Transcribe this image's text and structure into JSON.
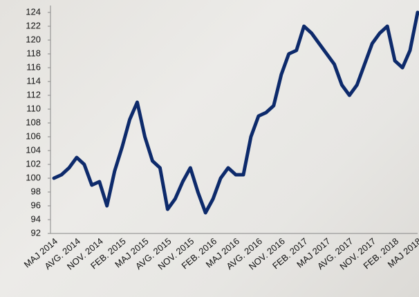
{
  "chart_data": {
    "type": "line",
    "categories": [
      "MAJ 2014",
      null,
      null,
      "AVG. 2014",
      null,
      null,
      "NOV. 2014",
      null,
      null,
      "FEB. 2015",
      null,
      null,
      "MAJ 2015",
      null,
      null,
      "AVG. 2015",
      null,
      null,
      "NOV. 2015",
      null,
      null,
      "FEB. 2016",
      null,
      null,
      "MAJ 2016",
      null,
      null,
      "AVG. 2016",
      null,
      null,
      "NOV. 2016",
      null,
      null,
      "FEB. 2017",
      null,
      null,
      "MAJ 2017",
      null,
      null,
      "AVG. 2017",
      null,
      null,
      "NOV. 2017",
      null,
      null,
      "FEB. 2018",
      null,
      null,
      "MAJ 2018"
    ],
    "series": [
      {
        "color": "#0d2a6b",
        "values": [
          100,
          100.5,
          101.5,
          103,
          102,
          99,
          99.5,
          96,
          101,
          104.5,
          108.5,
          111,
          106,
          102.5,
          101.5,
          95.5,
          97,
          99.5,
          101.5,
          98,
          95,
          97,
          100,
          101.5,
          100.5,
          100.5,
          106,
          109,
          109.5,
          110.5,
          115,
          118,
          118.5,
          122,
          121,
          119.5,
          118,
          116.5,
          113.5,
          112,
          113.5,
          116.5,
          119.5,
          121,
          122,
          117,
          116,
          118.5,
          124
        ]
      }
    ],
    "ylim": [
      92,
      125
    ],
    "yticks": [
      92,
      94,
      96,
      98,
      100,
      102,
      104,
      106,
      108,
      110,
      112,
      114,
      116,
      118,
      120,
      122,
      124
    ]
  }
}
